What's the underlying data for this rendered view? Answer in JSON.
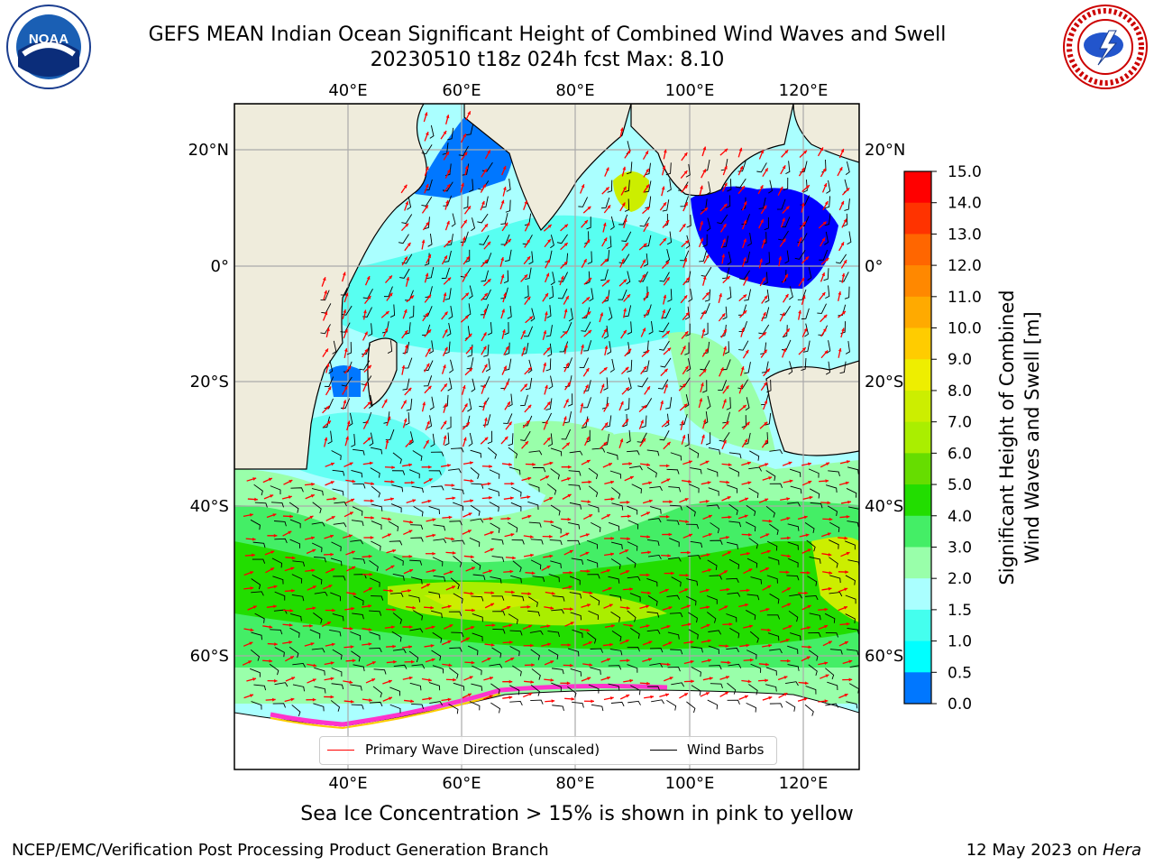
{
  "header": {
    "title_line1": "GEFS MEAN Indian Ocean Significant Height of Combined Wind Waves and Swell",
    "title_line2": "20230510 t18z 024h fcst   Max: 8.10"
  },
  "logos": {
    "left": {
      "icon": "noaa-logo",
      "text": "NOAA"
    },
    "right": {
      "icon": "national-weather-service-logo",
      "text": "NATIONAL WEATHER SERVICE"
    }
  },
  "map": {
    "lon_labels_top": [
      "40°E",
      "60°E",
      "80°E",
      "100°E",
      "120°E"
    ],
    "lon_labels_bottom": [
      "40°E",
      "60°E",
      "80°E",
      "100°E",
      "120°E"
    ],
    "lat_labels_left": [
      "20°N",
      "0°",
      "20°S",
      "40°S",
      "60°S"
    ],
    "lat_labels_right": [
      "20°N",
      "0°",
      "20°S",
      "40°S",
      "60°S"
    ],
    "colors": {
      "land": "#efecdc",
      "sea_ice_edge": "#ff33cc",
      "wave_arrows": "#ff0000",
      "wind_barbs": "#000000",
      "grid": "#aaaaaa"
    }
  },
  "legend": {
    "wave_direction": "Primary Wave Direction (unscaled)",
    "wind_barbs": "Wind Barbs"
  },
  "colorbar": {
    "label_line1": "Significant Height of Combined",
    "label_line2": "Wind Waves and Swell [m]",
    "ticks": [
      "15.0",
      "14.0",
      "13.0",
      "12.0",
      "11.0",
      "10.0",
      "9.0",
      "8.0",
      "7.0",
      "6.0",
      "5.0",
      "4.0",
      "3.0",
      "2.0",
      "1.5",
      "1.0",
      "0.5",
      "0.0"
    ],
    "colors_top_to_bottom": [
      "#ff0000",
      "#ff3300",
      "#ff6600",
      "#ff8800",
      "#ffaa00",
      "#ffcc00",
      "#eeee00",
      "#ccee00",
      "#aaee00",
      "#66dd00",
      "#22dd00",
      "#44ee66",
      "#99ffaa",
      "#aaffff",
      "#44ffee",
      "#00ffff",
      "#0077ff",
      "#0000ff"
    ]
  },
  "footer": {
    "sea_ice_note": "Sea Ice Concentration > 15% is shown in pink to yellow",
    "left": "NCEP/EMC/Verification Post Processing Product Generation Branch",
    "right_date": "12 May 2023 on ",
    "right_host": "Hera"
  }
}
